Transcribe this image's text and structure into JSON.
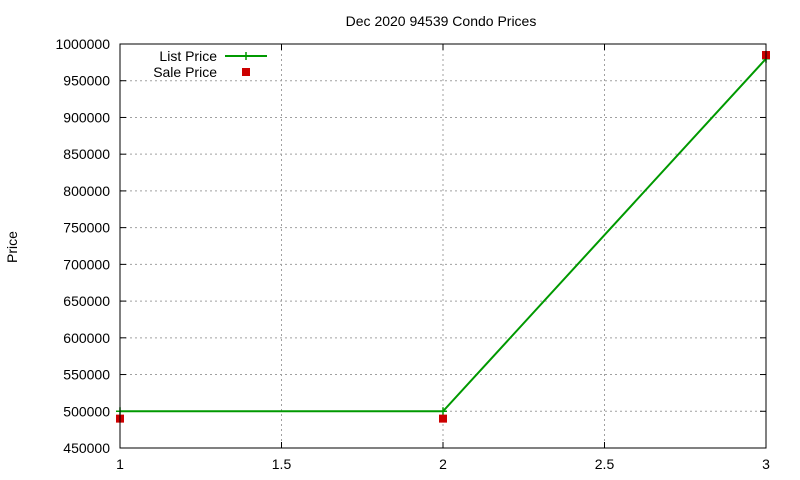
{
  "chart_data": {
    "type": "line",
    "title": "Dec 2020 94539 Condo Prices",
    "xlabel": "",
    "ylabel": "Price",
    "xlim": [
      1,
      3
    ],
    "ylim": [
      450000,
      1000000
    ],
    "xticks": [
      1,
      1.5,
      2,
      2.5,
      3
    ],
    "xtick_labels": [
      "1",
      "1.5",
      "2",
      "2.5",
      "3"
    ],
    "yticks": [
      450000,
      500000,
      550000,
      600000,
      650000,
      700000,
      750000,
      800000,
      850000,
      900000,
      950000,
      1000000
    ],
    "ytick_labels": [
      "450000",
      "500000",
      "550000",
      "600000",
      "650000",
      "700000",
      "750000",
      "800000",
      "850000",
      "900000",
      "950000",
      "1000000"
    ],
    "grid": true,
    "legend_position": "top-left",
    "series": [
      {
        "name": "List Price",
        "style": "linespoints",
        "marker": "plus",
        "color": "#009900",
        "x": [
          1,
          2,
          3
        ],
        "y": [
          500000,
          500000,
          980000
        ]
      },
      {
        "name": "Sale Price",
        "style": "points",
        "marker": "square",
        "color": "#cc0000",
        "x": [
          1,
          2,
          3
        ],
        "y": [
          490000,
          490000,
          985000
        ]
      }
    ]
  }
}
